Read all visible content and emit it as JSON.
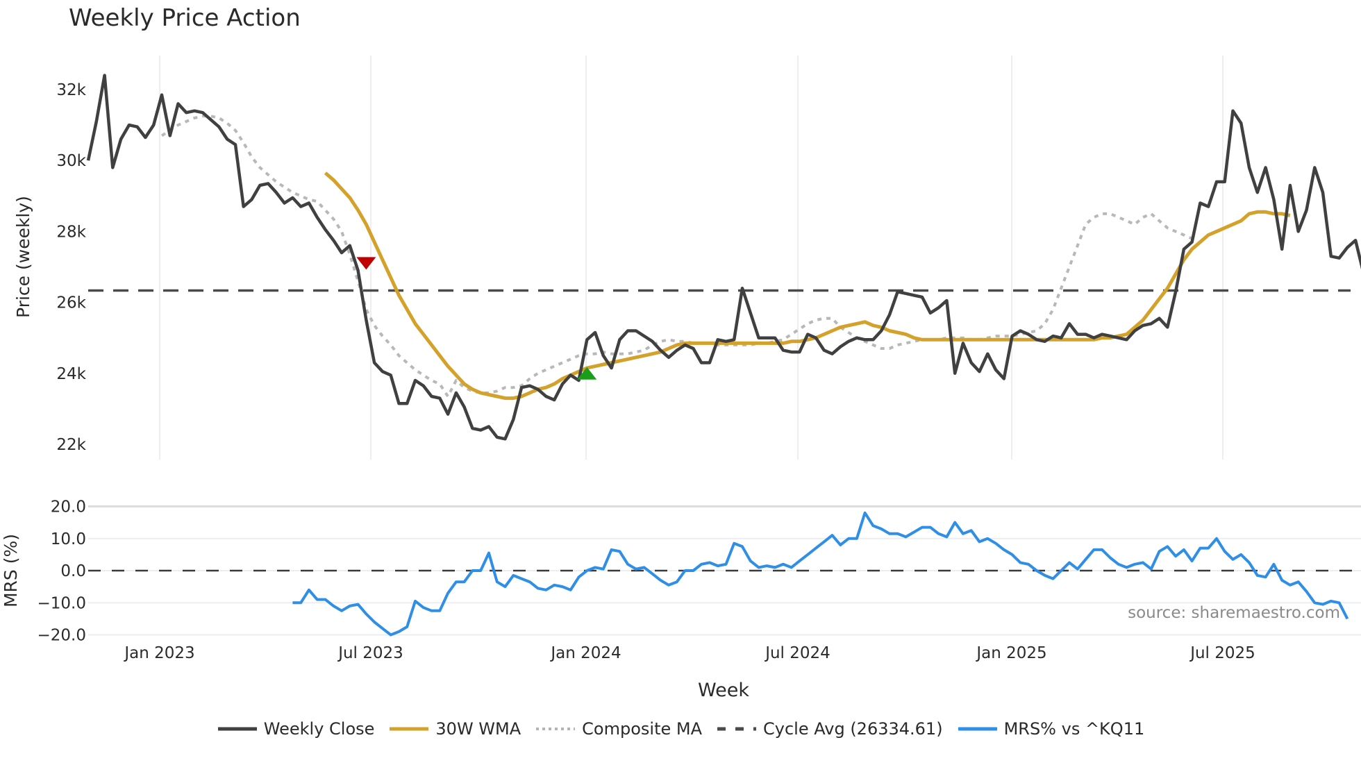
{
  "title": "Weekly Price Action",
  "source_label": "source: sharemaestro.com",
  "legend": [
    {
      "label": "Weekly Close",
      "color": "#404040",
      "style": "solid"
    },
    {
      "label": "30W WMA",
      "color": "#d4a12a",
      "style": "solid"
    },
    {
      "label": "Composite MA",
      "color": "#b5b5b5",
      "style": "dotted"
    },
    {
      "label": "Cycle Avg (26334.61)",
      "color": "#4a4a4a",
      "style": "dashed"
    },
    {
      "label": "MRS% vs ^KQ11",
      "color": "#2f8fe6",
      "style": "solid"
    }
  ],
  "chart_data": [
    {
      "type": "line",
      "title": "Weekly Price Action",
      "xlabel": "Week",
      "ylabel": "Price (weekly)",
      "ylim": [
        21600,
        32800
      ],
      "yticks": [
        22000,
        24000,
        26000,
        28000,
        30000,
        32000
      ],
      "ytick_labels": [
        "22k",
        "24k",
        "26k",
        "28k",
        "30k",
        "32k"
      ],
      "xticks": [
        "Jan 2023",
        "Jul 2023",
        "Jan 2024",
        "Jul 2024",
        "Jan 2025",
        "Jul 2025"
      ],
      "x_start": "2022-10-24",
      "x_step": "1 week",
      "grid": true,
      "cycle_avg": 26334.61,
      "series": [
        {
          "name": "Weekly Close",
          "values": [
            30000,
            31100,
            32400,
            29800,
            30600,
            31000,
            30950,
            30650,
            31000,
            31850,
            30700,
            31600,
            31350,
            31400,
            31350,
            31150,
            30950,
            30600,
            30450,
            28700,
            28900,
            29300,
            29350,
            29100,
            28800,
            28950,
            28700,
            28800,
            28400,
            28050,
            27750,
            27400,
            27600,
            26900,
            25500,
            24300,
            24050,
            23950,
            23150,
            23150,
            23800,
            23650,
            23350,
            23300,
            22850,
            23450,
            23050,
            22450,
            22400,
            22500,
            22200,
            22150,
            22700,
            23600,
            23650,
            23550,
            23350,
            23250,
            23700,
            23950,
            23800,
            24950,
            25150,
            24500,
            24150,
            24950,
            25200,
            25200,
            25050,
            24900,
            24650,
            24450,
            24650,
            24800,
            24700,
            24300,
            24300,
            24950,
            24900,
            24950,
            26400,
            25700,
            25000,
            25000,
            25000,
            24650,
            24600,
            24600,
            25100,
            25000,
            24650,
            24550,
            24750,
            24900,
            25000,
            24950,
            24950,
            25200,
            25650,
            26300,
            26250,
            26200,
            26150,
            25700,
            25850,
            26050,
            24000,
            24850,
            24300,
            24050,
            24550,
            24100,
            23850,
            25050,
            25200,
            25100,
            24950,
            24900,
            25050,
            25000,
            25400,
            25100,
            25100,
            25000,
            25100,
            25050,
            25000,
            24950,
            25200,
            25350,
            25400,
            25550,
            25300,
            26300,
            27500,
            27700,
            28800,
            28700,
            29400,
            29400,
            31400,
            31050,
            29800,
            29100,
            29800,
            28900,
            27500,
            29300,
            28000,
            28600,
            29800,
            29100,
            27300,
            27250,
            27550,
            27750,
            26800
          ]
        },
        {
          "name": "30W WMA",
          "start_index": 29,
          "values": [
            29650,
            29450,
            29200,
            28950,
            28600,
            28200,
            27700,
            27200,
            26700,
            26200,
            25800,
            25400,
            25100,
            24800,
            24500,
            24200,
            23950,
            23700,
            23550,
            23450,
            23400,
            23350,
            23300,
            23300,
            23350,
            23450,
            23550,
            23600,
            23700,
            23850,
            23950,
            24050,
            24150,
            24200,
            24250,
            24300,
            24350,
            24400,
            24450,
            24500,
            24550,
            24600,
            24700,
            24800,
            24850,
            24850,
            24850,
            24850,
            24850,
            24850,
            24850,
            24850,
            24850,
            24850,
            24850,
            24850,
            24850,
            24900,
            24900,
            24950,
            25000,
            25100,
            25200,
            25300,
            25350,
            25400,
            25450,
            25350,
            25300,
            25200,
            25150,
            25100,
            25000,
            24950,
            24950,
            24950,
            24950,
            24950,
            24950,
            24950,
            24950,
            24950,
            24950,
            24950,
            24950,
            24950,
            24950,
            24950,
            24950,
            24950,
            24950,
            24950,
            24950,
            24950,
            24950,
            25000,
            25000,
            25050,
            25100,
            25300,
            25500,
            25800,
            26100,
            26400,
            26800,
            27200,
            27500,
            27700,
            27900,
            28000,
            28100,
            28200,
            28300,
            28500,
            28550,
            28550,
            28500,
            28500,
            28450
          ]
        },
        {
          "name": "Composite MA",
          "start_index": 9,
          "values": [
            30700,
            30850,
            31000,
            31100,
            31200,
            31250,
            31250,
            31200,
            31050,
            30850,
            30500,
            30100,
            29800,
            29600,
            29400,
            29250,
            29100,
            29000,
            28900,
            28850,
            28600,
            28350,
            28000,
            27350,
            26600,
            25800,
            25350,
            25050,
            24800,
            24500,
            24300,
            24100,
            23950,
            23800,
            23700,
            23350,
            23800,
            23600,
            23500,
            23450,
            23450,
            23500,
            23600,
            23600,
            23650,
            23850,
            24000,
            24100,
            24200,
            24300,
            24400,
            24500,
            24550,
            24550,
            24600,
            24550,
            24550,
            24550,
            24600,
            24650,
            24800,
            24900,
            24950,
            24900,
            24900,
            24850,
            24850,
            24850,
            24800,
            24800,
            24800,
            24800,
            24800,
            24850,
            24850,
            24900,
            24950,
            25100,
            25250,
            25400,
            25500,
            25550,
            25550,
            25300,
            25150,
            25000,
            24900,
            24800,
            24700,
            24700,
            24800,
            24850,
            24900,
            24950,
            24950,
            24950,
            25000,
            25000,
            25000,
            24950,
            24950,
            25000,
            25050,
            25050,
            25050,
            25100,
            25150,
            25200,
            25400,
            25800,
            26400,
            27000,
            27600,
            28200,
            28400,
            28500,
            28500,
            28400,
            28300,
            28200,
            28400,
            28500,
            28300,
            28100,
            28000,
            27900,
            27800
          ]
        },
        {
          "name": "Cycle Avg (26334.61)",
          "type": "hline",
          "value": 26334.61
        }
      ],
      "markers": [
        {
          "type": "sell",
          "shape": "triangle-down",
          "color": "#c00000",
          "week_index": 34,
          "value": 27100
        },
        {
          "type": "buy",
          "shape": "triangle-up",
          "color": "#1a9e1a",
          "week_index": 61,
          "value": 24000
        }
      ]
    },
    {
      "type": "line",
      "title": "",
      "xlabel": "Week",
      "ylabel": "MRS (%)",
      "ylim": [
        -22,
        22
      ],
      "yticks": [
        -20,
        -10,
        0,
        10,
        20
      ],
      "ytick_labels": [
        "−20.0",
        "−10.0",
        "0.0",
        "10.0",
        "20.0"
      ],
      "series": [
        {
          "name": "MRS% vs ^KQ11",
          "start_index": 25,
          "values": [
            -10,
            -10,
            -6,
            -9,
            -9,
            -11,
            -12.5,
            -11,
            -10.5,
            -13.5,
            -16,
            -18,
            -20,
            -19,
            -17.5,
            -9.5,
            -11.5,
            -12.5,
            -12.5,
            -7,
            -3.5,
            -3.5,
            0,
            0,
            5.5,
            -3.5,
            -5,
            -1.5,
            -2.5,
            -3.5,
            -5.5,
            -6,
            -4.5,
            -5,
            -6,
            -2,
            0,
            1,
            0.5,
            6.5,
            6,
            2,
            0.5,
            1,
            -1,
            -3,
            -4.5,
            -3.5,
            0,
            0,
            2,
            2.5,
            1.5,
            2,
            8.5,
            7.5,
            3,
            1,
            1.5,
            1,
            2,
            1,
            3,
            5,
            7,
            9,
            11,
            8,
            10,
            10,
            18,
            14,
            13,
            11.5,
            11.5,
            10.5,
            12,
            13.5,
            13.5,
            11.5,
            10.5,
            15,
            11.5,
            12.5,
            9,
            10,
            8.5,
            6.5,
            5,
            2.5,
            2,
            0,
            -1.5,
            -2.5,
            0,
            2.5,
            0.5,
            3.5,
            6.5,
            6.5,
            4,
            2,
            1,
            2,
            2.5,
            0.5,
            6,
            7.5,
            4.5,
            6.5,
            3,
            7,
            7,
            10,
            6,
            3.5,
            5,
            2.5,
            -1.5,
            -2,
            2,
            -3,
            -4.5,
            -3.5,
            -6.5,
            -10,
            -10.5,
            -9.5,
            -10,
            -15
          ]
        },
        {
          "name": "zero-line",
          "type": "hline",
          "value": 0
        }
      ]
    }
  ]
}
